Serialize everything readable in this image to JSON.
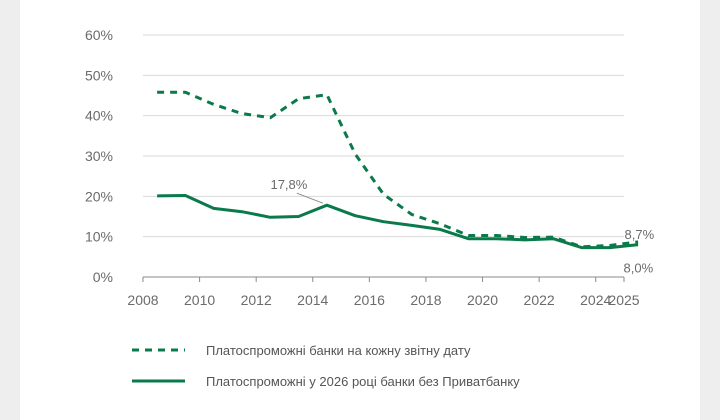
{
  "chart_data": {
    "type": "line",
    "title": "",
    "xlabel": "",
    "ylabel": "",
    "xlim": [
      2008,
      2025
    ],
    "ylim": [
      0,
      60
    ],
    "x_ticks": [
      "2008",
      "2010",
      "2012",
      "2014",
      "2016",
      "2018",
      "2020",
      "2022",
      "2024",
      "2025"
    ],
    "y_ticks": [
      "0%",
      "10%",
      "20%",
      "30%",
      "40%",
      "50%",
      "60%"
    ],
    "grid": "horizontal",
    "legend_position": "bottom",
    "series": [
      {
        "name": "Платоспроможні банки на кожну звітну дату",
        "style": "dashed",
        "color": "#0b7a4b",
        "x": [
          2008.5,
          2009.5,
          2010.5,
          2011.5,
          2012.5,
          2013.5,
          2014.5,
          2015.5,
          2016.5,
          2017.5,
          2018.5,
          2019.5,
          2020.5,
          2021.5,
          2022.5,
          2023.5,
          2024.5,
          2025.5
        ],
        "y": [
          45.8,
          45.8,
          42.8,
          40.5,
          39.5,
          44.2,
          45.2,
          30.5,
          20.5,
          15.5,
          13.2,
          10.3,
          10.3,
          9.8,
          9.9,
          7.5,
          7.8,
          8.7
        ]
      },
      {
        "name": "Платоспроможні у 2026 році банки без Приватбанку",
        "style": "solid",
        "color": "#0b7a4b",
        "x": [
          2008.5,
          2009.5,
          2010.5,
          2011.5,
          2012.5,
          2013.5,
          2014.5,
          2015.5,
          2016.5,
          2017.5,
          2018.5,
          2019.5,
          2020.5,
          2021.5,
          2022.5,
          2023.5,
          2024.5,
          2025.5
        ],
        "y": [
          20.1,
          20.2,
          17.0,
          16.2,
          14.8,
          15.0,
          17.8,
          15.2,
          13.7,
          12.8,
          11.8,
          9.5,
          9.5,
          9.2,
          9.5,
          7.3,
          7.3,
          8.0
        ]
      }
    ],
    "annotations": [
      {
        "text": "17,8%",
        "x": 2014.5,
        "y": 17.8
      },
      {
        "text": "8,7%",
        "x": 2025.5,
        "y": 8.7
      },
      {
        "text": "8,0%",
        "x": 2025.5,
        "y": 8.0
      }
    ]
  }
}
